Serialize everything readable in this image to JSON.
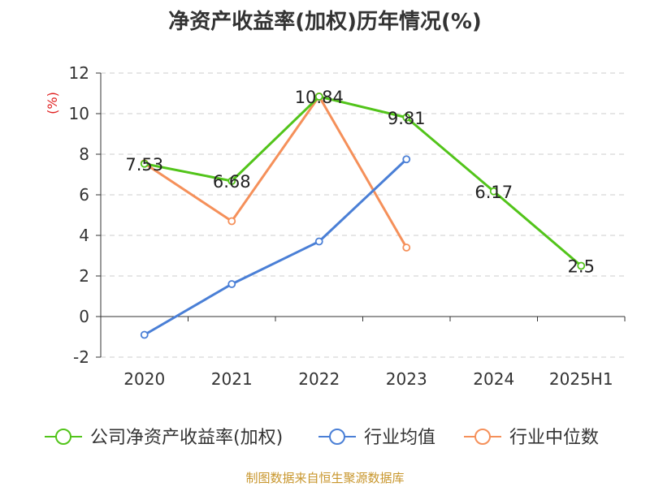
{
  "title": "净资产收益率(加权)历年情况(%)",
  "footer": "制图数据来自恒生聚源数据库",
  "chart_data": {
    "type": "line",
    "title": "净资产收益率(加权)历年情况(%)",
    "ylabel": "(%)",
    "xlabel": "",
    "ylim": [
      -2,
      12
    ],
    "yticks": [
      -2,
      0,
      2,
      4,
      6,
      8,
      10,
      12
    ],
    "categories": [
      "2020",
      "2021",
      "2022",
      "2023",
      "2024",
      "2025H1"
    ],
    "grid": true,
    "legend_position": "bottom",
    "series": [
      {
        "name": "公司净资产收益率(加权)",
        "color": "#52c41a",
        "values": [
          7.53,
          6.68,
          10.84,
          9.81,
          6.17,
          2.5
        ],
        "labels": [
          "7.53",
          "6.68",
          "10.84",
          "9.81",
          "6.17",
          "2.5"
        ]
      },
      {
        "name": "行业均值",
        "color": "#4a7fd6",
        "values": [
          -0.9,
          1.6,
          3.7,
          7.75,
          null,
          null
        ]
      },
      {
        "name": "行业中位数",
        "color": "#f5905a",
        "values": [
          7.55,
          4.7,
          10.85,
          3.4,
          null,
          null
        ]
      }
    ]
  }
}
